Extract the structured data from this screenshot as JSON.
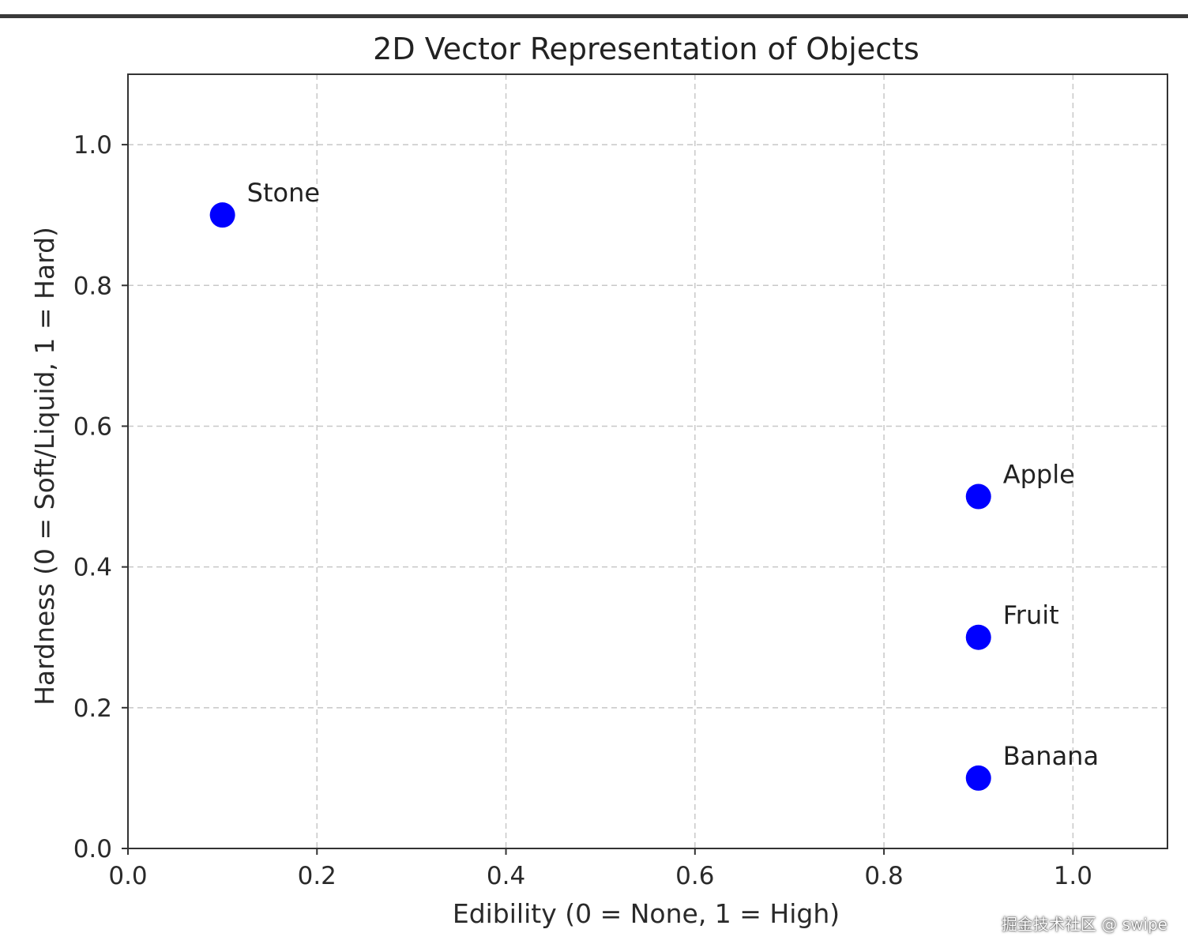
{
  "chart_data": {
    "type": "scatter",
    "title": "2D Vector Representation of Objects",
    "xlabel": "Edibility (0 = None, 1 = High)",
    "ylabel": "Hardness (0 = Soft/Liquid, 1 = Hard)",
    "xlim": [
      0.0,
      1.1
    ],
    "ylim": [
      0.0,
      1.1
    ],
    "xticks": [
      "0.0",
      "0.2",
      "0.4",
      "0.6",
      "0.8",
      "1.0"
    ],
    "yticks": [
      "0.0",
      "0.2",
      "0.4",
      "0.6",
      "0.8",
      "1.0"
    ],
    "grid": true,
    "points": [
      {
        "label": "Stone",
        "x": 0.1,
        "y": 0.9
      },
      {
        "label": "Apple",
        "x": 0.9,
        "y": 0.5
      },
      {
        "label": "Fruit",
        "x": 0.9,
        "y": 0.3
      },
      {
        "label": "Banana",
        "x": 0.9,
        "y": 0.1
      }
    ],
    "point_color": "#0000ff"
  },
  "watermark": "掘金技术社区 @ swipe"
}
